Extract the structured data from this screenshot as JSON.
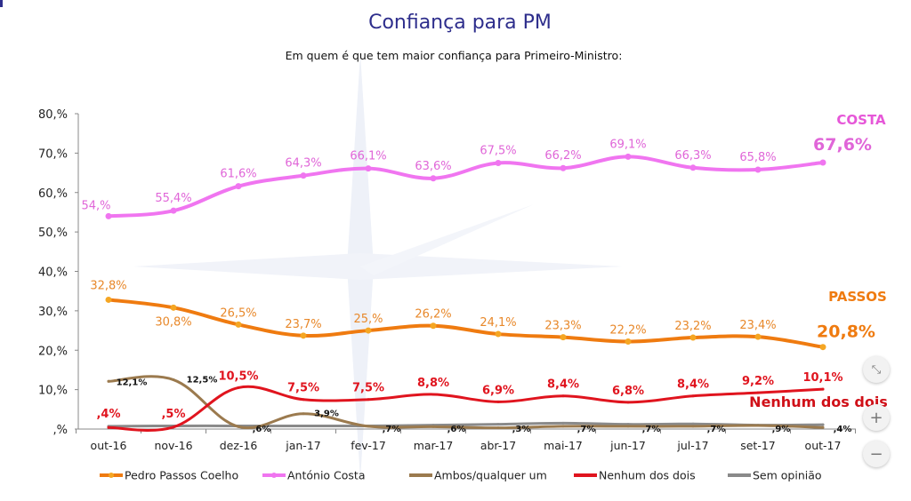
{
  "chart_data": {
    "type": "line",
    "title": "Confiança para PM",
    "subtitle": "Em quem é que tem maior confiança para Primeiro-Ministro:",
    "xlabel": "",
    "ylabel": "",
    "ylim": [
      0,
      80
    ],
    "yticks": [
      ",%",
      "10,%",
      "20,%",
      "30,%",
      "40,%",
      "50,%",
      "60,%",
      "70,%",
      "80,%"
    ],
    "ytick_values": [
      0,
      10,
      20,
      30,
      40,
      50,
      60,
      70,
      80
    ],
    "grid": false,
    "legend_position": "bottom",
    "categories": [
      "out-16",
      "nov-16",
      "dez-16",
      "jan-17",
      "fev-17",
      "mar-17",
      "abr-17",
      "mai-17",
      "jun-17",
      "jul-17",
      "set-17",
      "out-17"
    ],
    "series": [
      {
        "name": "Pedro Passos Coelho",
        "color": "#ef7b10",
        "label_color": "#e8882a",
        "values": [
          32.8,
          30.8,
          26.5,
          23.7,
          25.0,
          26.2,
          24.1,
          23.3,
          22.2,
          23.2,
          23.4,
          20.8
        ],
        "labels": [
          "32,8%",
          "30,8%",
          "26,5%",
          "23,7%",
          "25,%",
          "26,2%",
          "24,1%",
          "23,3%",
          "22,2%",
          "23,2%",
          "23,4%",
          "20,8%"
        ],
        "end_name": "PASSOS"
      },
      {
        "name": "António Costa",
        "color": "#f075f0",
        "label_color": "#e066d8",
        "values": [
          54.0,
          55.4,
          61.6,
          64.3,
          66.1,
          63.6,
          67.5,
          66.2,
          69.1,
          66.3,
          65.8,
          67.6
        ],
        "labels": [
          "54,%",
          "55,4%",
          "61,6%",
          "64,3%",
          "66,1%",
          "63,6%",
          "67,5%",
          "66,2%",
          "69,1%",
          "66,3%",
          "65,8%",
          "67,6%"
        ],
        "end_name": "COSTA"
      },
      {
        "name": "Ambos/qualquer um",
        "color": "#9b7a4e",
        "label_color": "#111111",
        "values": [
          12.1,
          12.5,
          0.6,
          3.9,
          0.7,
          0.6,
          0.3,
          0.7,
          0.7,
          0.7,
          0.9,
          0.4
        ],
        "labels": [
          "12,1%",
          "12,5%",
          ",6%",
          "3,9%",
          ",7%",
          ",6%",
          ",3%",
          ",7%",
          ",7%",
          ",7%",
          ",9%",
          ",4%"
        ]
      },
      {
        "name": "Nenhum dos dois",
        "color": "#e0141e",
        "label_color": "#e0141e",
        "values": [
          0.4,
          0.5,
          10.5,
          7.5,
          7.5,
          8.8,
          6.9,
          8.4,
          6.8,
          8.4,
          9.2,
          10.1
        ],
        "labels": [
          ",4%",
          ",5%",
          "10,5%",
          "7,5%",
          "7,5%",
          "8,8%",
          "6,9%",
          "8,4%",
          "6,8%",
          "8,4%",
          "9,2%",
          "10,1%"
        ],
        "end_name": "Nenhum dos dois"
      },
      {
        "name": "Sem opinião",
        "color": "#8a8a8a",
        "label_color": "#111111",
        "values": [
          0.7,
          0.8,
          0.8,
          0.8,
          0.8,
          1.0,
          1.2,
          1.5,
          1.2,
          1.3,
          1.0,
          1.1
        ],
        "labels": []
      }
    ]
  },
  "controls": {
    "fit_icon": "⤡",
    "zoom_in_label": "+",
    "zoom_out_label": "−"
  }
}
